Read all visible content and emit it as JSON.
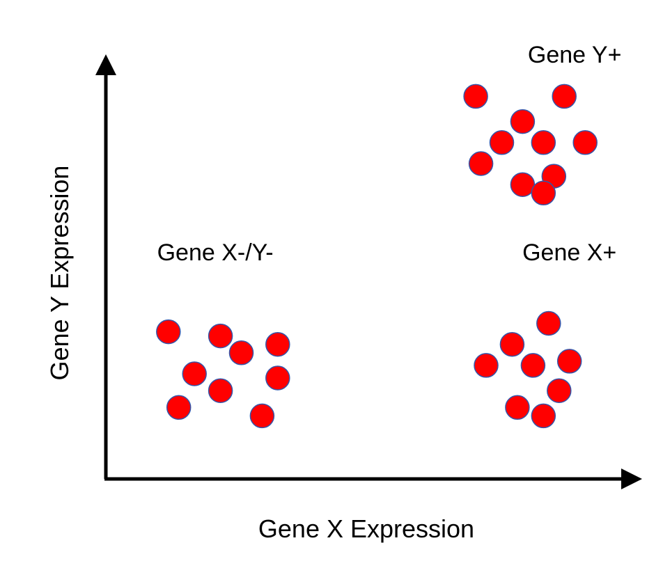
{
  "chart_data": {
    "type": "scatter",
    "xlabel": "Gene X Expression",
    "ylabel": "Gene Y Expression",
    "xlim": [
      0,
      100
    ],
    "ylim": [
      0,
      100
    ],
    "grid": false,
    "ticks": false,
    "axis_arrows": true,
    "marker_color": "#ff0000",
    "marker_edge_color": "#3355aa",
    "annotations": [
      {
        "text": "Gene Y+",
        "x": 90,
        "y": 99
      },
      {
        "text": "Gene X-/Y-",
        "x": 21,
        "y": 52
      },
      {
        "text": "Gene X+",
        "x": 89,
        "y": 52
      }
    ],
    "series": [
      {
        "points": [
          [
            71,
            91
          ],
          [
            88,
            91
          ],
          [
            80,
            85
          ],
          [
            76,
            80
          ],
          [
            84,
            80
          ],
          [
            92,
            80
          ],
          [
            72,
            75
          ],
          [
            80,
            70
          ],
          [
            86,
            72
          ],
          [
            84,
            68
          ]
        ]
      },
      {
        "points": [
          [
            12,
            35
          ],
          [
            22,
            34
          ],
          [
            26,
            30
          ],
          [
            33,
            32
          ],
          [
            17,
            25
          ],
          [
            33,
            24
          ],
          [
            22,
            21
          ],
          [
            14,
            17
          ],
          [
            30,
            15
          ]
        ]
      },
      {
        "points": [
          [
            85,
            37
          ],
          [
            78,
            32
          ],
          [
            73,
            27
          ],
          [
            82,
            27
          ],
          [
            89,
            28
          ],
          [
            87,
            21
          ],
          [
            79,
            17
          ],
          [
            84,
            15
          ]
        ]
      }
    ]
  }
}
